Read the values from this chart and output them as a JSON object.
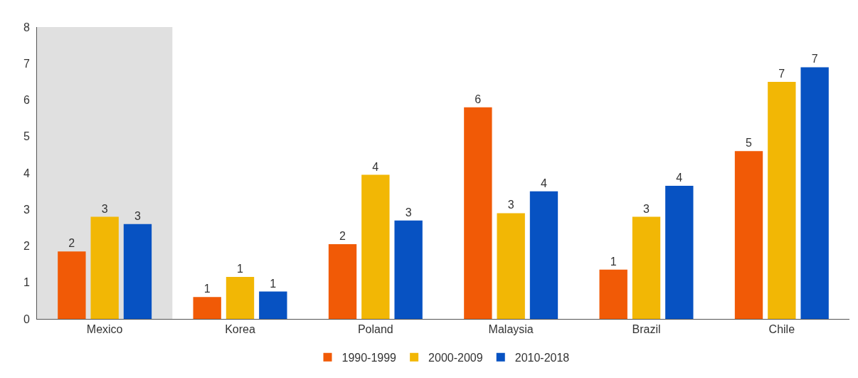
{
  "chart_data": {
    "type": "bar",
    "categories": [
      "Mexico",
      "Korea",
      "Poland",
      "Malaysia",
      "Brazil",
      "Chile"
    ],
    "series": [
      {
        "name": "1990-1999",
        "color": "#f15a06",
        "values": [
          1.85,
          0.6,
          2.05,
          5.8,
          1.35,
          4.6
        ],
        "value_labels": [
          "2",
          "1",
          "2",
          "6",
          "1",
          "5"
        ]
      },
      {
        "name": "2000-2009",
        "color": "#f2b705",
        "values": [
          2.8,
          1.15,
          3.95,
          2.9,
          2.8,
          6.5
        ],
        "value_labels": [
          "3",
          "1",
          "4",
          "3",
          "3",
          "7"
        ]
      },
      {
        "name": "2010-2018",
        "color": "#0752c2",
        "values": [
          2.6,
          0.75,
          2.7,
          3.5,
          3.65,
          6.9
        ],
        "value_labels": [
          "3",
          "1",
          "3",
          "4",
          "4",
          "7"
        ]
      }
    ],
    "ylim": [
      0,
      8
    ],
    "yticks": [
      0,
      1,
      2,
      3,
      4,
      5,
      6,
      7,
      8
    ],
    "grid": false,
    "legend": "bottom",
    "bands": [
      {
        "axis": "x",
        "from": "Mexico",
        "to": "Mexico",
        "color": "#e0e0e0"
      }
    ]
  }
}
